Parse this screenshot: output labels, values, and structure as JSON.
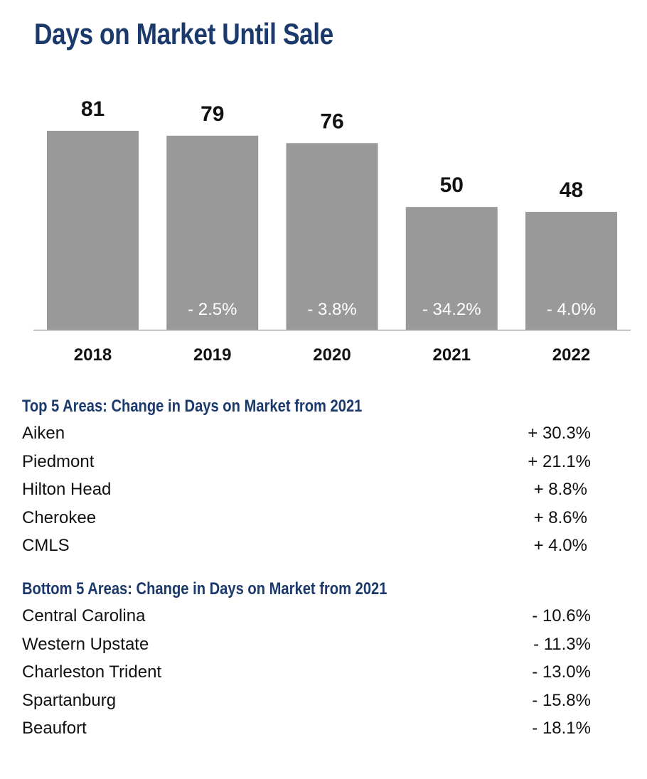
{
  "title": "Days on Market Until Sale",
  "chart_data": {
    "type": "bar",
    "categories": [
      "2018",
      "2019",
      "2020",
      "2021",
      "2022"
    ],
    "values": [
      81,
      79,
      76,
      50,
      48
    ],
    "value_labels": [
      "81",
      "79",
      "76",
      "50",
      "48"
    ],
    "change_labels": [
      "",
      "- 2.5%",
      "- 3.8%",
      "- 34.2%",
      "- 4.0%"
    ],
    "xlabel": "",
    "ylabel": "",
    "ylim": [
      0,
      81
    ],
    "grid": false,
    "legend": "none",
    "colors": {
      "bar": "#999999",
      "value_label": "#111111",
      "change_label": "#ffffff",
      "axis": "#aaaaaa"
    }
  },
  "top_areas": {
    "heading": "Top 5 Areas: Change in Days on Market from 2021",
    "rows": [
      {
        "area": "Aiken",
        "change": "+ 30.3%"
      },
      {
        "area": "Piedmont",
        "change": "+ 21.1%"
      },
      {
        "area": "Hilton Head",
        "change": "+ 8.8%"
      },
      {
        "area": "Cherokee",
        "change": "+ 8.6%"
      },
      {
        "area": "CMLS",
        "change": "+ 4.0%"
      }
    ]
  },
  "bottom_areas": {
    "heading": "Bottom 5 Areas: Change in Days on Market from 2021",
    "rows": [
      {
        "area": "Central Carolina",
        "change": "- 10.6%"
      },
      {
        "area": "Western Upstate",
        "change": "- 11.3%"
      },
      {
        "area": "Charleston Trident",
        "change": "- 13.0%"
      },
      {
        "area": "Spartanburg",
        "change": "- 15.8%"
      },
      {
        "area": "Beaufort",
        "change": "- 18.1%"
      }
    ]
  },
  "theme": {
    "heading_color": "#1b3a6b",
    "text_color": "#111111"
  }
}
